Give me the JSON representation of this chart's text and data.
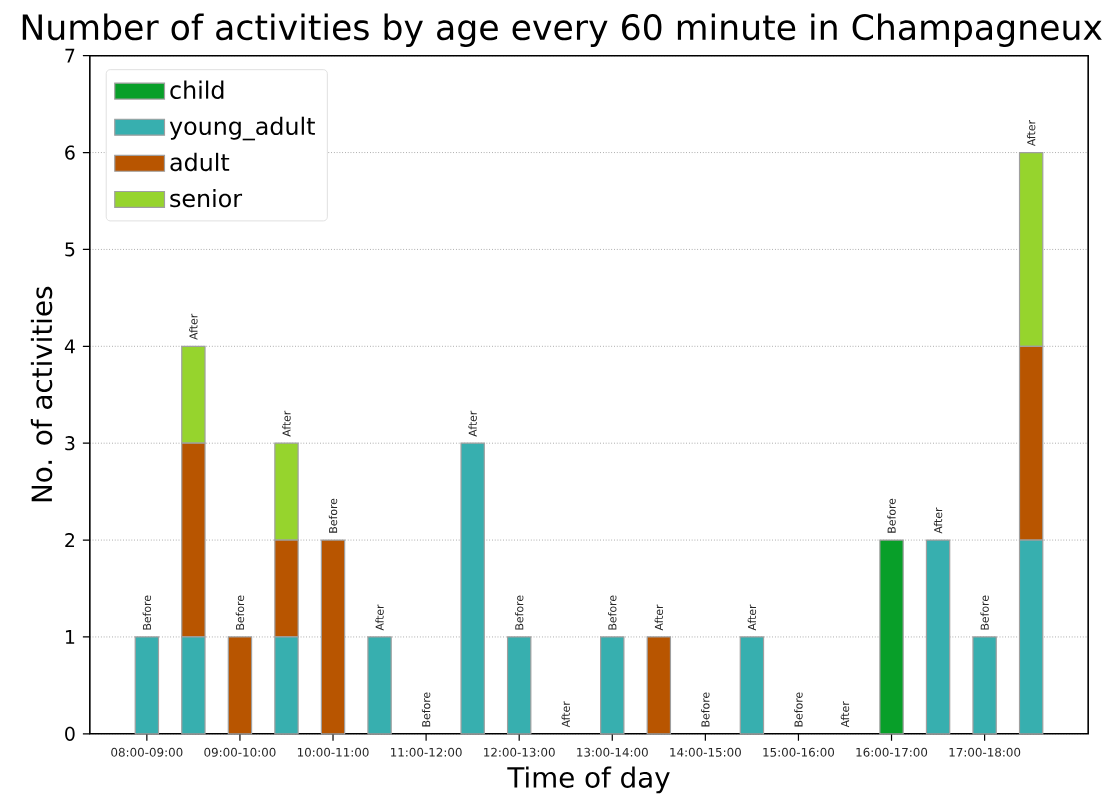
{
  "chart_data": {
    "type": "bar",
    "title": "Number of activities by age every 60 minute in Champagneux",
    "xlabel": "Time of day",
    "ylabel": "No. of activities",
    "stacked": true,
    "grid": "y",
    "legend": "top left",
    "categories": [
      "08:00-09:00",
      null,
      "09:00-10:00",
      null,
      "10:00-11:00",
      null,
      "11:00-12:00",
      null,
      "12:00-13:00",
      null,
      "13:00-14:00",
      null,
      "14:00-15:00",
      null,
      "15:00-16:00",
      null,
      "16:00-17:00",
      null,
      "17:00-18:00",
      null
    ],
    "ylim": [
      0,
      7
    ],
    "yticks": [
      0,
      1,
      2,
      3,
      4,
      5,
      6,
      7
    ],
    "series": [
      {
        "name": "child",
        "color": "#089f29",
        "values": [
          0,
          0,
          0,
          0,
          0,
          0,
          0,
          0,
          0,
          0,
          0,
          0,
          0,
          0,
          0,
          0,
          2,
          0,
          0,
          0
        ]
      },
      {
        "name": "young_adult",
        "color": "#37afaf",
        "values": [
          1,
          1,
          0,
          1,
          0,
          1,
          0,
          3,
          1,
          0,
          1,
          0,
          0,
          1,
          0,
          0,
          0,
          2,
          1,
          2
        ]
      },
      {
        "name": "adult",
        "color": "#b85500",
        "values": [
          0,
          2,
          1,
          1,
          2,
          0,
          0,
          0,
          0,
          0,
          0,
          1,
          0,
          0,
          0,
          0,
          0,
          0,
          0,
          2
        ]
      },
      {
        "name": "senior",
        "color": "#96d42d",
        "values": [
          0,
          1,
          0,
          1,
          0,
          0,
          0,
          0,
          0,
          0,
          0,
          0,
          0,
          0,
          0,
          0,
          0,
          0,
          0,
          2
        ]
      }
    ],
    "annotations": [
      "Before",
      "After",
      "Before",
      "After",
      "Before",
      "After",
      "Before",
      "After",
      "Before",
      "After",
      "Before",
      "After",
      "Before",
      "After",
      "Before",
      "After",
      "Before",
      "After",
      "Before",
      "After"
    ]
  }
}
